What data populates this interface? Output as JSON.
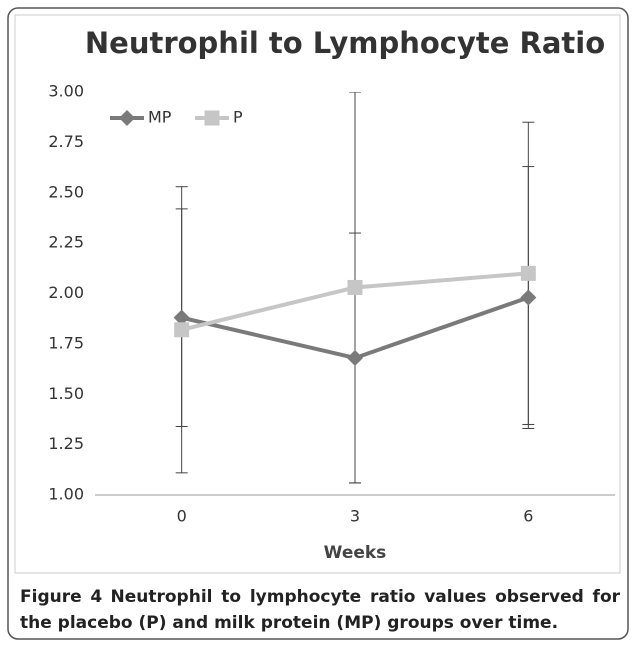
{
  "chart_data": {
    "type": "line",
    "title": "Neutrophil to Lymphocyte Ratio",
    "x_label": "Weeks",
    "categories": [
      "0",
      "3",
      "6"
    ],
    "series": [
      {
        "name": "MP",
        "color": "#7a7a7a",
        "marker": "diamond",
        "values": [
          1.88,
          1.68,
          1.98
        ],
        "errors": [
          0.54,
          0.62,
          0.65
        ]
      },
      {
        "name": "P",
        "color": "#c6c6c6",
        "marker": "square",
        "values": [
          1.82,
          2.03,
          2.1
        ],
        "errors": [
          0.71,
          0.97,
          0.75
        ]
      }
    ],
    "ylim": [
      1,
      3
    ],
    "yticks": [
      {
        "value": 1,
        "label": "1.00"
      },
      {
        "value": 1.25,
        "label": "1.25"
      },
      {
        "value": 1.5,
        "label": "1.50"
      },
      {
        "value": 1.75,
        "label": "1.75"
      },
      {
        "value": 2,
        "label": "2.00"
      },
      {
        "value": 2.25,
        "label": "2.25"
      },
      {
        "value": 2.5,
        "label": "2.50"
      },
      {
        "value": 2.75,
        "label": "2.75"
      },
      {
        "value": 3,
        "label": "3.00"
      }
    ],
    "grid": false,
    "legend": "top-left"
  },
  "caption": {
    "label": "Figure 4",
    "text": "Neutrophil to lymphocyte ratio values observed for the placebo (P) and milk protein (MP) groups over time."
  }
}
